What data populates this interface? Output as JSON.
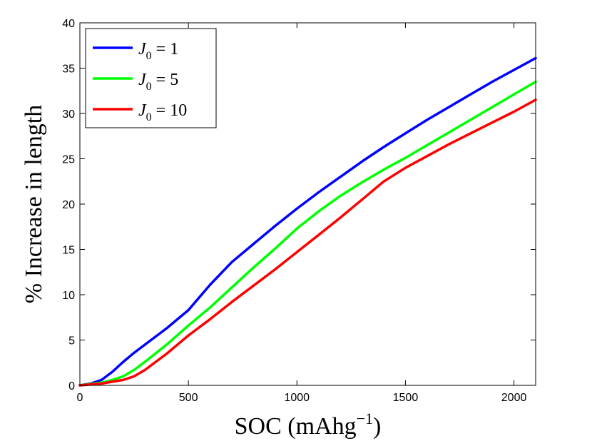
{
  "chart_data": {
    "type": "line",
    "title": "",
    "xlabel": "SOC (mAhg",
    "xlabel_sup": "−1",
    "xlabel_close": ")",
    "ylabel": "% Increase in length",
    "xlim": [
      0,
      2100
    ],
    "ylim": [
      0,
      40
    ],
    "xticks": [
      0,
      500,
      1000,
      1500,
      2000
    ],
    "yticks": [
      0,
      5,
      10,
      15,
      20,
      25,
      30,
      35,
      40
    ],
    "legend_position": "top-left",
    "series": [
      {
        "name": "J0 = 1",
        "legend_var": "J",
        "legend_sub": "0",
        "legend_rest": " = 1",
        "color": "#0000ff",
        "x": [
          0,
          50,
          100,
          150,
          200,
          250,
          300,
          400,
          500,
          600,
          700,
          800,
          900,
          1000,
          1100,
          1200,
          1300,
          1400,
          1500,
          1600,
          1700,
          1800,
          1900,
          2000,
          2100
        ],
        "y": [
          0,
          0.2,
          0.6,
          1.5,
          2.6,
          3.6,
          4.5,
          6.3,
          8.3,
          11.1,
          13.6,
          15.6,
          17.6,
          19.5,
          21.3,
          23.0,
          24.7,
          26.3,
          27.8,
          29.3,
          30.7,
          32.1,
          33.5,
          34.8,
          36.1
        ]
      },
      {
        "name": "J0 = 5",
        "legend_var": "J",
        "legend_sub": "0",
        "legend_rest": " = 5",
        "color": "#00ff00",
        "x": [
          0,
          100,
          150,
          200,
          250,
          300,
          400,
          500,
          600,
          700,
          800,
          900,
          1000,
          1100,
          1200,
          1300,
          1400,
          1500,
          1600,
          1700,
          1800,
          1900,
          2000,
          2100
        ],
        "y": [
          0,
          0.3,
          0.6,
          1.0,
          1.7,
          2.6,
          4.5,
          6.6,
          8.6,
          10.8,
          13.0,
          15.1,
          17.3,
          19.2,
          20.9,
          22.4,
          23.8,
          25.1,
          26.5,
          27.9,
          29.3,
          30.7,
          32.1,
          33.5
        ]
      },
      {
        "name": "J0 = 10",
        "legend_var": "J",
        "legend_sub": "0",
        "legend_rest": " = 10",
        "color": "#ff0000",
        "x": [
          0,
          100,
          150,
          200,
          250,
          300,
          400,
          500,
          600,
          700,
          800,
          900,
          1000,
          1100,
          1200,
          1300,
          1400,
          1500,
          1600,
          1700,
          1800,
          1900,
          2000,
          2100
        ],
        "y": [
          0,
          0.2,
          0.4,
          0.6,
          1.0,
          1.7,
          3.5,
          5.5,
          7.3,
          9.2,
          11.0,
          12.8,
          14.7,
          16.6,
          18.5,
          20.5,
          22.5,
          24.0,
          25.3,
          26.6,
          27.8,
          29.0,
          30.2,
          31.5
        ]
      }
    ]
  }
}
